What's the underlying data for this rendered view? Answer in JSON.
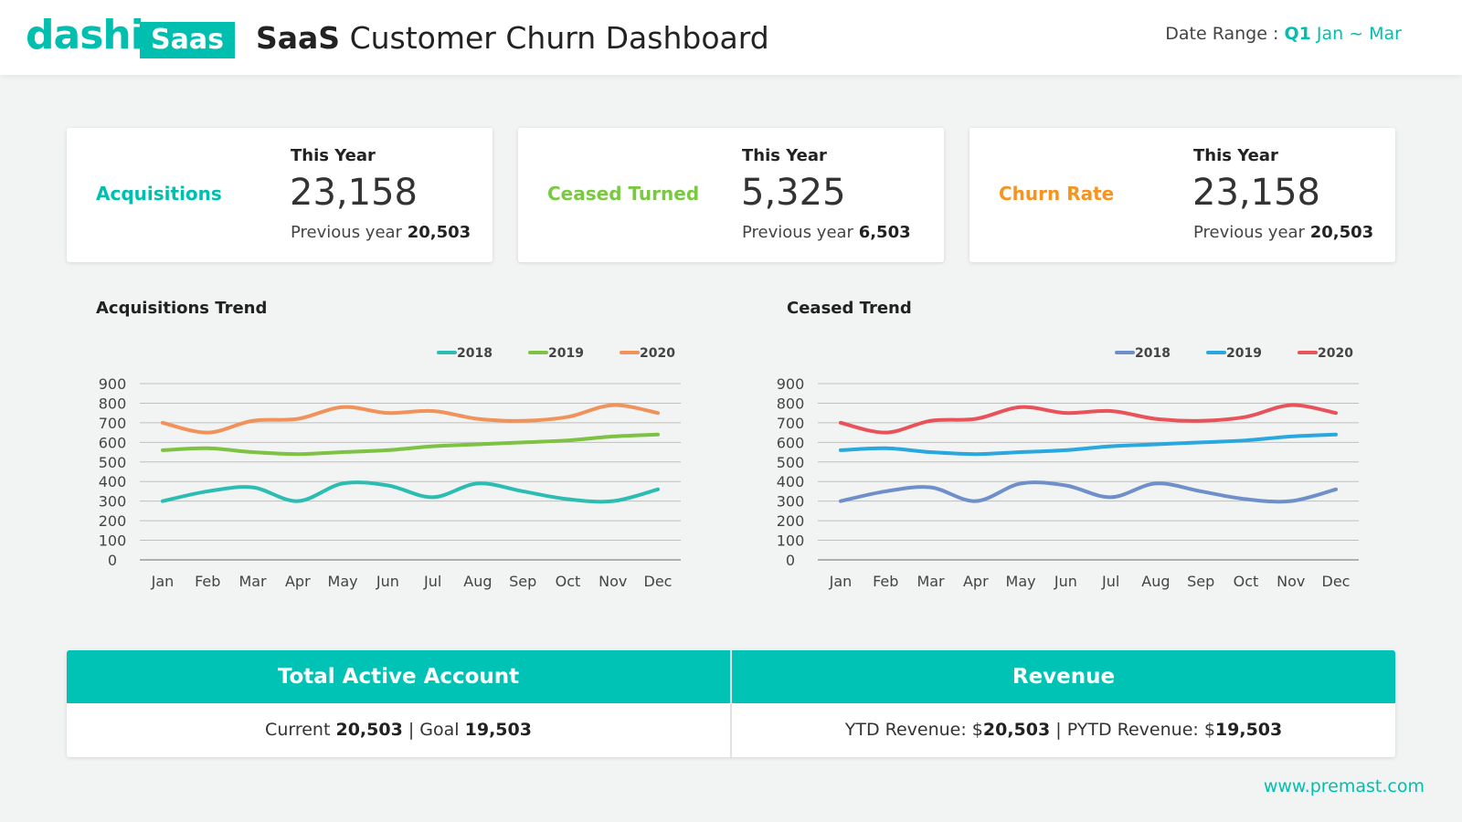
{
  "header": {
    "logo_text": "dashi",
    "logo_box": "Saas",
    "title_bold": "SaaS",
    "title_rest": "Customer Churn Dashboard",
    "date_label": "Date Range :",
    "date_quarter": "Q1",
    "date_months": "Jan ~ Mar"
  },
  "cards": [
    {
      "label": "Acquisitions",
      "this_year_label": "This Year",
      "value": "23,158",
      "prev_label": "Previous year",
      "prev_value": "20,503",
      "color": "#00bfae"
    },
    {
      "label": "Ceased Turned",
      "this_year_label": "This Year",
      "value": "5,325",
      "prev_label": "Previous year",
      "prev_value": "6,503",
      "color": "#7ac943"
    },
    {
      "label": "Churn Rate",
      "this_year_label": "This Year",
      "value": "23,158",
      "prev_label": "Previous year",
      "prev_value": "20,503",
      "color": "#f7931e"
    }
  ],
  "chart_data": [
    {
      "type": "line",
      "title": "Acquisitions Trend",
      "categories": [
        "Jan",
        "Feb",
        "Mar",
        "Apr",
        "May",
        "Jun",
        "Jul",
        "Aug",
        "Sep",
        "Oct",
        "Nov",
        "Dec"
      ],
      "ylim": [
        0,
        900
      ],
      "yticks": [
        "0",
        "100",
        "200",
        "300",
        "400",
        "500",
        "600",
        "700",
        "800",
        "900"
      ],
      "grid": true,
      "legend": "top-right",
      "series": [
        {
          "name": "2018",
          "color": "#2bbcb2",
          "values": [
            300,
            350,
            370,
            300,
            390,
            380,
            320,
            390,
            350,
            310,
            300,
            360
          ]
        },
        {
          "name": "2019",
          "color": "#7dc242",
          "values": [
            560,
            570,
            550,
            540,
            550,
            560,
            580,
            590,
            600,
            610,
            630,
            640
          ]
        },
        {
          "name": "2020",
          "color": "#f0925a",
          "values": [
            700,
            650,
            710,
            720,
            780,
            750,
            760,
            720,
            710,
            730,
            790,
            750
          ]
        }
      ]
    },
    {
      "type": "line",
      "title": "Ceased Trend",
      "categories": [
        "Jan",
        "Feb",
        "Mar",
        "Apr",
        "May",
        "Jun",
        "Jul",
        "Aug",
        "Sep",
        "Oct",
        "Nov",
        "Dec"
      ],
      "ylim": [
        0,
        900
      ],
      "yticks": [
        "0",
        "100",
        "200",
        "300",
        "400",
        "500",
        "600",
        "700",
        "800",
        "900"
      ],
      "grid": true,
      "legend": "top-right",
      "series": [
        {
          "name": "2018",
          "color": "#6f8fca",
          "values": [
            300,
            350,
            370,
            300,
            390,
            380,
            320,
            390,
            350,
            310,
            300,
            360
          ]
        },
        {
          "name": "2019",
          "color": "#29a8df",
          "values": [
            560,
            570,
            550,
            540,
            550,
            560,
            580,
            590,
            600,
            610,
            630,
            640
          ]
        },
        {
          "name": "2020",
          "color": "#e8535a",
          "values": [
            700,
            650,
            710,
            720,
            780,
            750,
            760,
            720,
            710,
            730,
            790,
            750
          ]
        }
      ]
    }
  ],
  "summary": {
    "total_active": {
      "header": "Total Active Account",
      "current_label": "Current",
      "current_value": "20,503",
      "sep": "|",
      "goal_label": "Goal",
      "goal_value": "19,503"
    },
    "revenue": {
      "header": "Revenue",
      "ytd_label": "YTD Revenue: $",
      "ytd_value": "20,503",
      "sep": "|",
      "pytd_label": "PYTD Revenue: $",
      "pytd_value": "19,503"
    }
  },
  "footer": {
    "url": "www.premast.com"
  }
}
